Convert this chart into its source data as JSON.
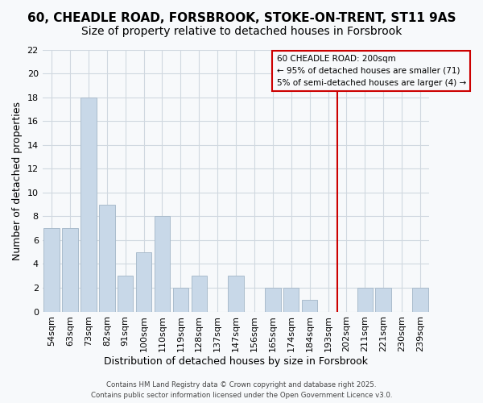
{
  "title": "60, CHEADLE ROAD, FORSBROOK, STOKE-ON-TRENT, ST11 9AS",
  "subtitle": "Size of property relative to detached houses in Forsbrook",
  "xlabel": "Distribution of detached houses by size in Forsbrook",
  "ylabel": "Number of detached properties",
  "categories": [
    "54sqm",
    "63sqm",
    "73sqm",
    "82sqm",
    "91sqm",
    "100sqm",
    "110sqm",
    "119sqm",
    "128sqm",
    "137sqm",
    "147sqm",
    "156sqm",
    "165sqm",
    "174sqm",
    "184sqm",
    "193sqm",
    "202sqm",
    "211sqm",
    "221sqm",
    "230sqm",
    "239sqm"
  ],
  "values": [
    7,
    7,
    18,
    9,
    3,
    5,
    8,
    2,
    3,
    0,
    3,
    0,
    2,
    2,
    1,
    0,
    0,
    2,
    2,
    0,
    2
  ],
  "bar_color": "#c8d8e8",
  "bar_edgecolor": "#aabccc",
  "vline_x_index": 16,
  "vline_color": "#cc0000",
  "ylim": [
    0,
    22
  ],
  "yticks": [
    0,
    2,
    4,
    6,
    8,
    10,
    12,
    14,
    16,
    18,
    20,
    22
  ],
  "legend_title": "60 CHEADLE ROAD: 200sqm",
  "legend_line1": "← 95% of detached houses are smaller (71)",
  "legend_line2": "5% of semi-detached houses are larger (4) →",
  "legend_edgecolor": "#cc0000",
  "grid_color": "#d0d8e0",
  "footer1": "Contains HM Land Registry data © Crown copyright and database right 2025.",
  "footer2": "Contains public sector information licensed under the Open Government Licence v3.0.",
  "title_fontsize": 11,
  "subtitle_fontsize": 10,
  "axis_label_fontsize": 9,
  "tick_fontsize": 8,
  "background_color": "#f7f9fb"
}
